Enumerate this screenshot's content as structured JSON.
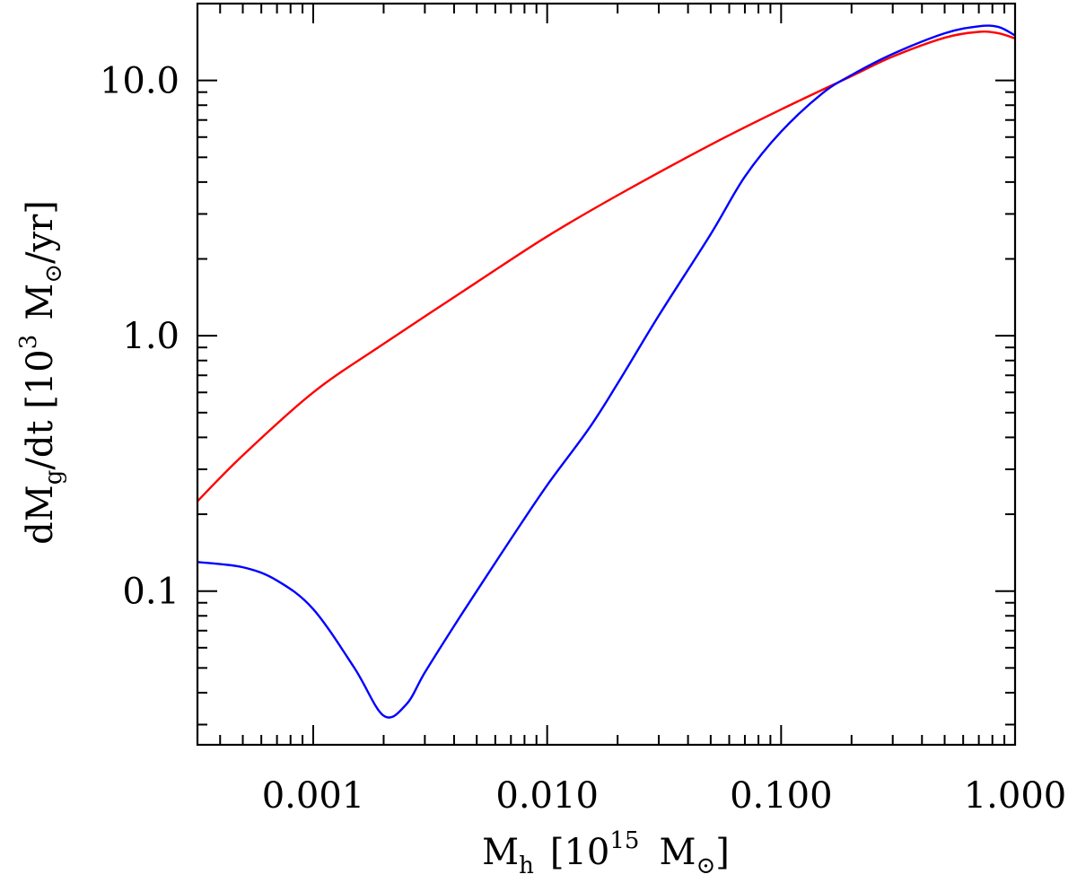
{
  "chart_data": {
    "type": "line",
    "xscale": "log",
    "yscale": "log",
    "xlim": [
      0.00032,
      1.0
    ],
    "ylim": [
      0.025,
      20.0
    ],
    "grid": false,
    "xlabel": {
      "text": "M",
      "sub": "h",
      "rest_open": "[10",
      "sup": "15",
      "rest_close": "M",
      "unit_symbol": "⊙",
      "end": "]"
    },
    "ylabel": {
      "prefix": "dM",
      "sub": "g",
      "rest_open": "/dt [10",
      "sup": "3",
      "rest_close": "M",
      "unit_symbol": "⊙",
      "end": "/yr]"
    },
    "x_ticks": [
      {
        "value": 0.001,
        "label": "0.001"
      },
      {
        "value": 0.01,
        "label": "0.010"
      },
      {
        "value": 0.1,
        "label": "0.100"
      },
      {
        "value": 1.0,
        "label": "1.000"
      }
    ],
    "y_ticks": [
      {
        "value": 0.1,
        "label": "0.1"
      },
      {
        "value": 1.0,
        "label": "1.0"
      },
      {
        "value": 10.0,
        "label": "10.0"
      }
    ],
    "series": [
      {
        "color": "#ff0000",
        "x": [
          0.00032,
          0.0005,
          0.001,
          0.002,
          0.005,
          0.01,
          0.02,
          0.05,
          0.1,
          0.2,
          0.3,
          0.5,
          0.7,
          0.85,
          1.0
        ],
        "y": [
          0.225,
          0.34,
          0.6,
          0.93,
          1.62,
          2.45,
          3.55,
          5.6,
          7.7,
          10.4,
          12.4,
          14.7,
          15.5,
          15.3,
          14.6
        ]
      },
      {
        "color": "#0000ff",
        "x": [
          0.00032,
          0.0005,
          0.0007,
          0.001,
          0.0015,
          0.002,
          0.0025,
          0.003,
          0.004,
          0.005,
          0.007,
          0.01,
          0.015,
          0.02,
          0.03,
          0.05,
          0.07,
          0.1,
          0.15,
          0.2,
          0.3,
          0.5,
          0.7,
          0.85,
          1.0
        ],
        "y": [
          0.13,
          0.124,
          0.11,
          0.085,
          0.05,
          0.0325,
          0.036,
          0.048,
          0.073,
          0.1,
          0.16,
          0.26,
          0.43,
          0.65,
          1.2,
          2.5,
          4.2,
          6.3,
          8.9,
          10.5,
          12.7,
          15.3,
          16.3,
          16.2,
          15.0
        ]
      }
    ]
  }
}
